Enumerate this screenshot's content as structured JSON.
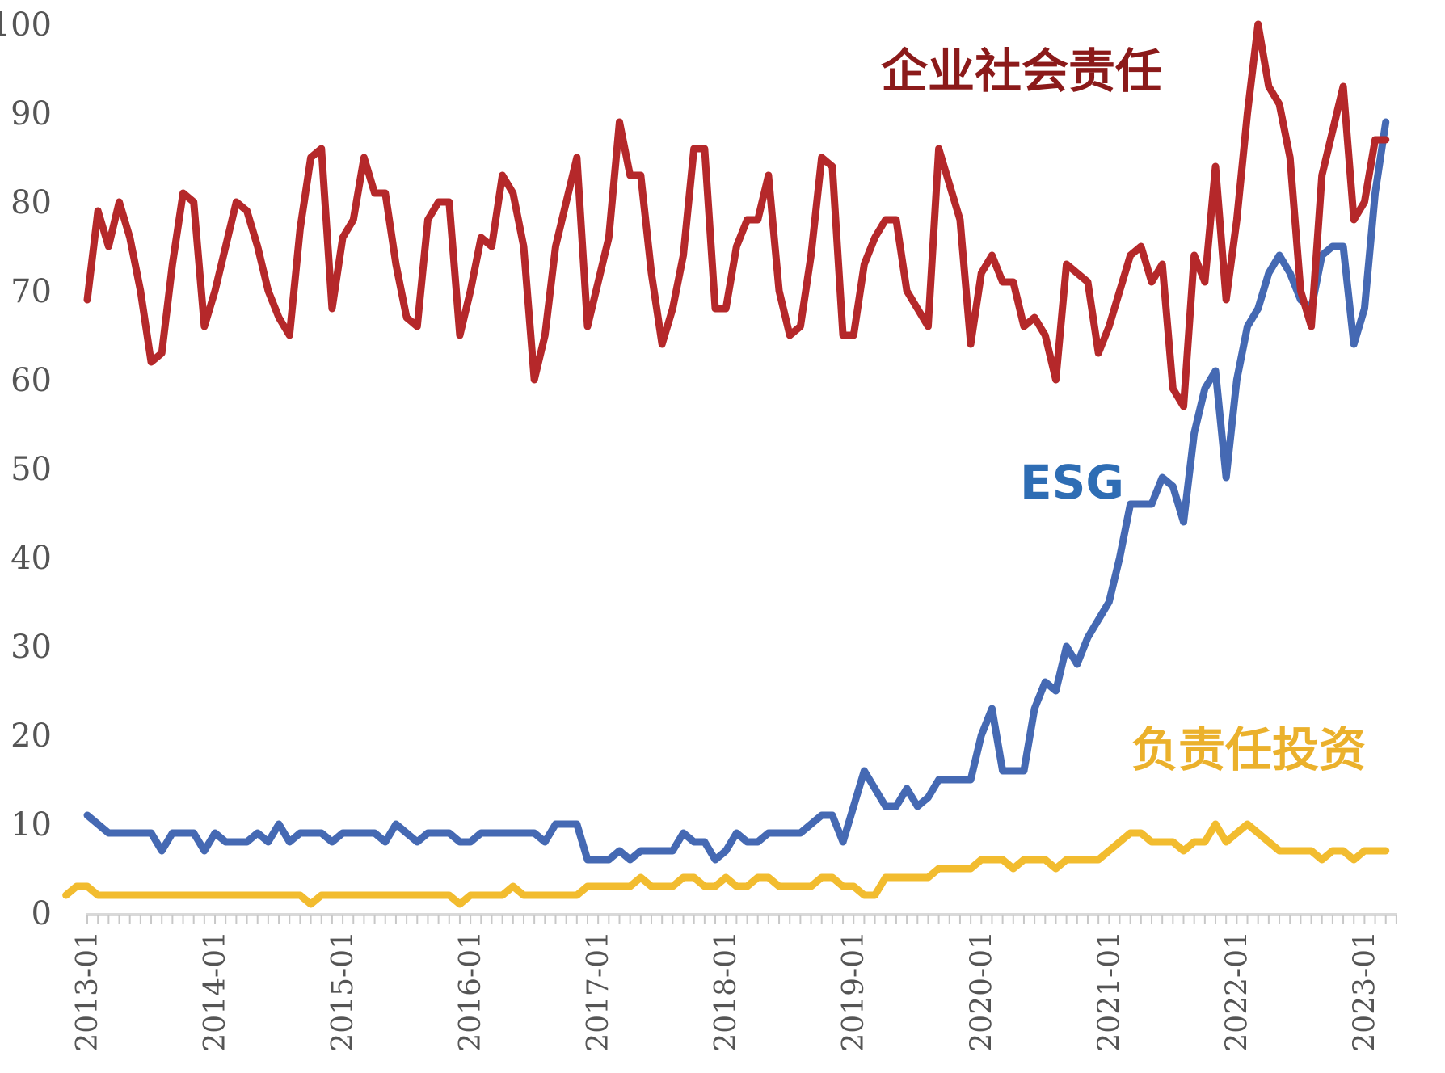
{
  "chart_data": {
    "type": "line",
    "title": "",
    "xlabel": "",
    "ylabel": "",
    "ylim": [
      0,
      100
    ],
    "yticks": [
      0,
      10,
      20,
      30,
      40,
      50,
      60,
      70,
      80,
      90,
      100
    ],
    "x_start": "2013-01",
    "x_end": "2023-04",
    "xtick_labels": [
      "2013-01",
      "2014-01",
      "2015-01",
      "2016-01",
      "2017-01",
      "2018-01",
      "2019-01",
      "2020-01",
      "2021-01",
      "2022-01",
      "2023-01"
    ],
    "grid": false,
    "series": [
      {
        "name": "企业社会责任",
        "color": "#b5282a",
        "label_color": "#8b1a1a",
        "values": [
          69,
          79,
          75,
          80,
          76,
          70,
          62,
          63,
          73,
          81,
          80,
          66,
          70,
          75,
          80,
          79,
          75,
          70,
          67,
          65,
          77,
          85,
          86,
          68,
          76,
          78,
          85,
          81,
          81,
          73,
          67,
          66,
          78,
          80,
          80,
          65,
          70,
          76,
          75,
          83,
          81,
          75,
          60,
          65,
          75,
          80,
          85,
          66,
          71,
          76,
          89,
          83,
          83,
          72,
          64,
          68,
          74,
          86,
          86,
          68,
          68,
          75,
          78,
          78,
          83,
          70,
          65,
          66,
          74,
          85,
          84,
          65,
          65,
          73,
          76,
          78,
          78,
          70,
          68,
          66,
          86,
          82,
          78,
          64,
          72,
          74,
          71,
          71,
          66,
          67,
          65,
          60,
          73,
          72,
          71,
          63,
          66,
          70,
          74,
          75,
          71,
          73,
          59,
          57,
          74,
          71,
          84,
          69,
          78,
          90,
          100,
          93,
          91,
          85,
          70,
          66,
          83,
          88,
          93,
          78,
          80,
          87,
          87
        ],
        "x_offset": 0
      },
      {
        "name": "ESG",
        "color": "#4569b3",
        "label_color": "#2e6db4",
        "values": [
          11,
          10,
          9,
          9,
          9,
          9,
          9,
          7,
          9,
          9,
          9,
          7,
          9,
          8,
          8,
          8,
          9,
          8,
          10,
          8,
          9,
          9,
          9,
          8,
          9,
          9,
          9,
          9,
          8,
          10,
          9,
          8,
          9,
          9,
          9,
          8,
          8,
          9,
          9,
          9,
          9,
          9,
          9,
          8,
          10,
          10,
          10,
          6,
          6,
          6,
          7,
          6,
          7,
          7,
          7,
          7,
          9,
          8,
          8,
          6,
          7,
          9,
          8,
          8,
          9,
          9,
          9,
          9,
          10,
          11,
          11,
          8,
          12,
          16,
          14,
          12,
          12,
          14,
          12,
          13,
          15,
          15,
          15,
          15,
          20,
          23,
          16,
          16,
          16,
          23,
          26,
          25,
          30,
          28,
          31,
          33,
          35,
          40,
          46,
          46,
          46,
          49,
          48,
          44,
          54,
          59,
          61,
          49,
          60,
          66,
          68,
          72,
          74,
          72,
          69,
          68,
          74,
          75,
          75,
          64,
          68,
          81,
          89
        ],
        "x_offset": 0
      },
      {
        "name": "负责任投资",
        "color": "#f2bc2f",
        "label_color": "#ebb12c",
        "values": [
          2,
          3,
          3,
          2,
          2,
          2,
          2,
          2,
          2,
          2,
          2,
          2,
          2,
          2,
          2,
          2,
          2,
          2,
          2,
          2,
          2,
          2,
          2,
          1,
          2,
          2,
          2,
          2,
          2,
          2,
          2,
          2,
          2,
          2,
          2,
          2,
          2,
          1,
          2,
          2,
          2,
          2,
          3,
          2,
          2,
          2,
          2,
          2,
          2,
          3,
          3,
          3,
          3,
          3,
          4,
          3,
          3,
          3,
          4,
          4,
          3,
          3,
          4,
          3,
          3,
          4,
          4,
          3,
          3,
          3,
          3,
          4,
          4,
          3,
          3,
          2,
          2,
          4,
          4,
          4,
          4,
          4,
          5,
          5,
          5,
          5,
          6,
          6,
          6,
          5,
          6,
          6,
          6,
          5,
          6,
          6,
          6,
          6,
          7,
          8,
          9,
          9,
          8,
          8,
          8,
          7,
          8,
          8,
          10,
          8,
          9,
          10,
          9,
          8,
          7,
          7,
          7,
          7,
          6,
          7,
          7,
          6,
          7,
          7,
          7
        ],
        "x_offset": -2
      }
    ]
  }
}
